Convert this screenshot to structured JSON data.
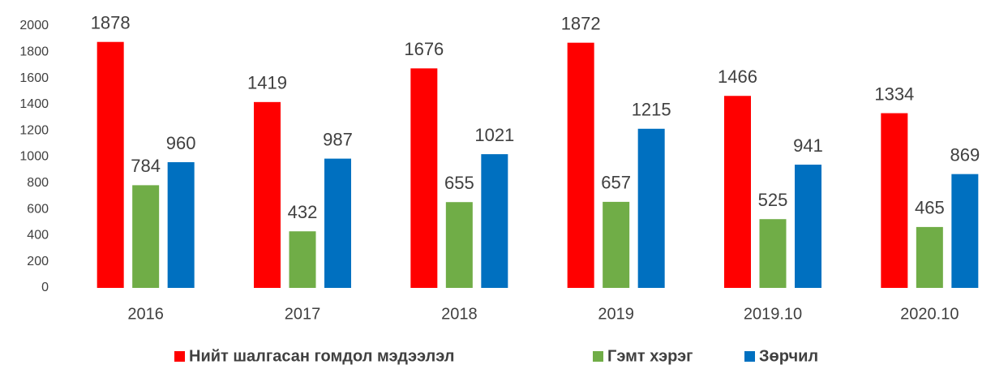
{
  "chart_data": {
    "type": "bar",
    "categories": [
      "2016",
      "2017",
      "2018",
      "2019",
      "2019.10",
      "2020.10"
    ],
    "series": [
      {
        "name": "Нийт шалгасан гомдол мэдээлэл",
        "color": "#ff0000",
        "values": [
          1878,
          1419,
          1676,
          1872,
          1466,
          1334
        ]
      },
      {
        "name": "Гэмт хэрэг",
        "color": "#70ad47",
        "values": [
          784,
          432,
          655,
          657,
          525,
          465
        ]
      },
      {
        "name": "Зөрчил",
        "color": "#0070c0",
        "values": [
          960,
          987,
          1021,
          1215,
          941,
          869
        ]
      }
    ],
    "ylim": [
      0,
      2000
    ],
    "yticks": [
      0,
      200,
      400,
      600,
      800,
      1000,
      1200,
      1400,
      1600,
      1800,
      2000
    ],
    "grid": false,
    "legend": "bottom"
  }
}
